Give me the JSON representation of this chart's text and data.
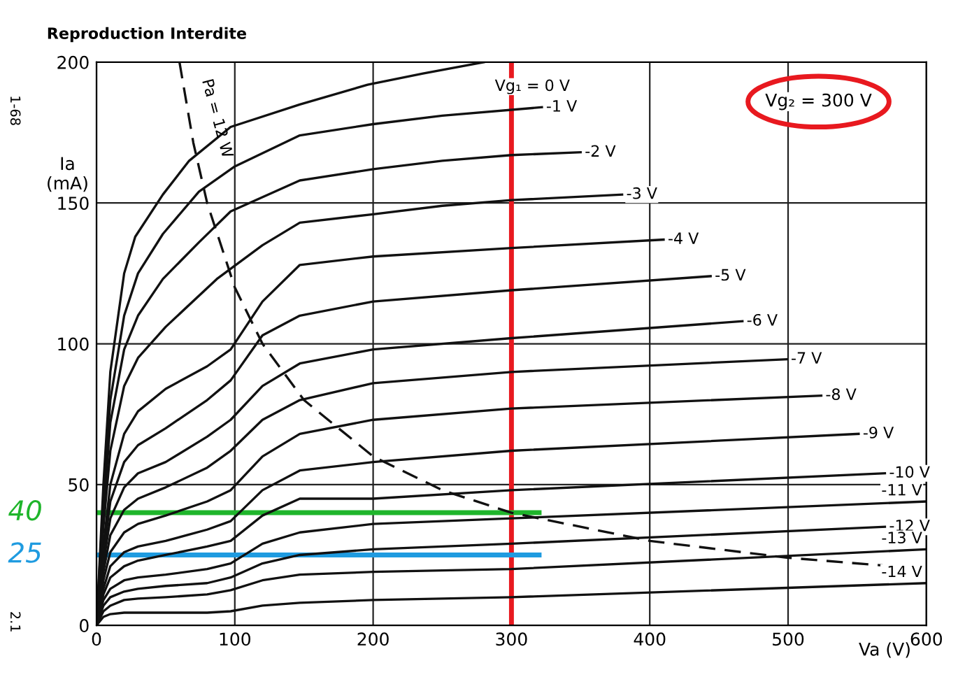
{
  "chart_data": {
    "type": "line",
    "title": "Reproduction Interdite",
    "xlabel": "Va (V)",
    "ylabel": "Ia\n(mA)",
    "xlim": [
      0,
      600
    ],
    "ylim": [
      0,
      200
    ],
    "xticks": [
      0,
      100,
      200,
      300,
      400,
      500,
      600
    ],
    "yticks": [
      0,
      50,
      100,
      150,
      200
    ],
    "grid": true,
    "line_style": "solid",
    "marker": "none",
    "series": [
      {
        "name": "Vg₁ = 0 V",
        "color": "#111111",
        "x": [
          0,
          5,
          10,
          20,
          28,
          48,
          67,
          97,
          147,
          196,
          236,
          280
        ],
        "values": [
          0,
          50,
          90,
          125,
          138,
          153,
          165,
          177,
          185,
          192,
          196,
          200
        ]
      },
      {
        "name": "-1 V",
        "color": "#111111",
        "x": [
          0,
          5,
          10,
          20,
          30,
          48,
          74,
          100,
          147,
          200,
          250,
          322
        ],
        "values": [
          0,
          45,
          80,
          110,
          125,
          139,
          154,
          163,
          174,
          178,
          181,
          184
        ]
      },
      {
        "name": "-2 V",
        "color": "#111111",
        "x": [
          0,
          5,
          10,
          20,
          30,
          48,
          74,
          97,
          147,
          200,
          250,
          300,
          350
        ],
        "values": [
          0,
          40,
          72,
          98,
          110,
          123,
          136,
          147,
          158,
          162,
          165,
          167,
          168
        ]
      },
      {
        "name": "-3 V",
        "color": "#111111",
        "x": [
          0,
          5,
          10,
          20,
          30,
          50,
          87,
          120,
          147,
          200,
          250,
          300,
          380
        ],
        "values": [
          0,
          35,
          62,
          85,
          95,
          106,
          123,
          135,
          143,
          146,
          149,
          151,
          153
        ]
      },
      {
        "name": "-4 V",
        "color": "#111111",
        "x": [
          0,
          5,
          10,
          20,
          30,
          50,
          80,
          97,
          120,
          147,
          200,
          300,
          410
        ],
        "values": [
          0,
          28,
          50,
          68,
          76,
          84,
          92,
          98,
          115,
          128,
          131,
          134,
          137
        ]
      },
      {
        "name": "-5 V",
        "color": "#111111",
        "x": [
          0,
          5,
          10,
          20,
          30,
          50,
          80,
          97,
          120,
          147,
          200,
          300,
          444
        ],
        "values": [
          0,
          25,
          44,
          58,
          64,
          70,
          80,
          87,
          103,
          110,
          115,
          119,
          124
        ]
      },
      {
        "name": "-6 V",
        "color": "#111111",
        "x": [
          0,
          5,
          10,
          20,
          30,
          50,
          80,
          97,
          120,
          147,
          200,
          300,
          467
        ],
        "values": [
          0,
          22,
          38,
          49,
          54,
          58,
          67,
          73,
          85,
          93,
          98,
          102,
          108
        ]
      },
      {
        "name": "-7 V",
        "color": "#111111",
        "x": [
          0,
          5,
          10,
          20,
          30,
          50,
          80,
          97,
          120,
          147,
          200,
          300,
          499
        ],
        "values": [
          0,
          19,
          32,
          41,
          45,
          49,
          56,
          62,
          73,
          80,
          86,
          90,
          94.5
        ]
      },
      {
        "name": "-8 V",
        "color": "#111111",
        "x": [
          0,
          5,
          10,
          20,
          30,
          50,
          80,
          97,
          120,
          147,
          200,
          300,
          524
        ],
        "values": [
          0,
          16,
          26,
          33,
          36,
          39,
          44,
          48,
          60,
          68,
          73,
          77,
          81.6
        ]
      },
      {
        "name": "-9 V",
        "color": "#111111",
        "x": [
          0,
          5,
          10,
          20,
          30,
          50,
          80,
          97,
          120,
          147,
          200,
          300,
          551
        ],
        "values": [
          0,
          13,
          21,
          26,
          28,
          30,
          34,
          37,
          48,
          55,
          58,
          62,
          68
        ]
      },
      {
        "name": "-10 V",
        "color": "#111111",
        "x": [
          0,
          5,
          10,
          20,
          30,
          50,
          80,
          97,
          120,
          147,
          200,
          300,
          570
        ],
        "values": [
          0,
          11,
          17,
          21,
          23,
          25,
          28,
          30,
          39,
          45,
          45,
          48,
          54
        ]
      },
      {
        "name": "-11 V",
        "color": "#111111",
        "x": [
          0,
          5,
          10,
          20,
          30,
          50,
          80,
          97,
          120,
          147,
          200,
          300,
          600
        ],
        "values": [
          0,
          9,
          13,
          16,
          17,
          18,
          20,
          22,
          29,
          33,
          36,
          38,
          44
        ]
      },
      {
        "name": "-12 V",
        "color": "#111111",
        "x": [
          0,
          5,
          10,
          20,
          30,
          50,
          80,
          97,
          120,
          147,
          200,
          300,
          570
        ],
        "values": [
          0,
          7,
          10,
          12,
          13,
          14,
          15,
          17,
          22,
          25,
          27,
          29,
          35
        ]
      },
      {
        "name": "-13 V",
        "color": "#111111",
        "x": [
          0,
          5,
          10,
          20,
          30,
          50,
          80,
          97,
          120,
          147,
          200,
          300,
          600
        ],
        "values": [
          0,
          5,
          7,
          9,
          9.5,
          10,
          11,
          12.5,
          16,
          18,
          19,
          20,
          27
        ]
      },
      {
        "name": "-14 V",
        "color": "#111111",
        "x": [
          0,
          5,
          10,
          20,
          30,
          50,
          80,
          97,
          120,
          147,
          200,
          300,
          600
        ],
        "values": [
          0,
          3,
          4,
          4.5,
          4.5,
          4.5,
          4.5,
          5,
          7,
          8,
          9,
          10,
          15
        ]
      },
      {
        "color": "#111111",
        "line_style": "dashed",
        "x": [
          60,
          70,
          80,
          100,
          120,
          150,
          200,
          250,
          300,
          400,
          500,
          600
        ],
        "values": [
          200,
          171.4,
          150,
          120,
          100,
          80,
          60,
          48,
          40,
          30,
          24,
          20
        ]
      }
    ],
    "annotations": [
      {
        "text": "Pa = 12 W",
        "x": 70,
        "y": 180
      },
      "Vg₂ = 300 V",
      "1-68",
      "2.1"
    ],
    "ref_lines": [
      {
        "axis": "x",
        "value": 300,
        "color": "#e8191f"
      },
      {
        "axis": "y",
        "value": 40,
        "label": "40",
        "color": "#1fb52b"
      },
      {
        "axis": "y",
        "value": 25,
        "label": "25",
        "color": "#1f9be0"
      }
    ]
  }
}
